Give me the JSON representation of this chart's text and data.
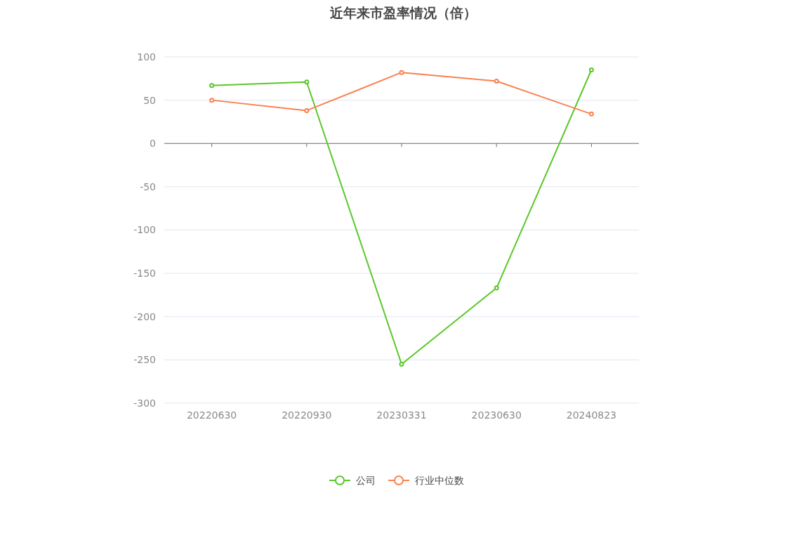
{
  "chart_data": {
    "type": "line",
    "title": "近年来市盈率情况（倍）",
    "categories": [
      "20220630",
      "20220930",
      "20230331",
      "20230630",
      "20240823"
    ],
    "series": [
      {
        "name": "公司",
        "color": "#5bc72a",
        "values": [
          67,
          71,
          -255,
          -167,
          85
        ]
      },
      {
        "name": "行业中位数",
        "color": "#fa8150",
        "values": [
          50,
          38,
          82,
          72,
          34
        ]
      }
    ],
    "ylim": [
      -300,
      100
    ],
    "yticks": [
      -300,
      -250,
      -200,
      -150,
      -100,
      -50,
      0,
      50,
      100
    ],
    "grid": "y",
    "legend": "bottom",
    "marker": "circle",
    "line_style": "solid"
  }
}
